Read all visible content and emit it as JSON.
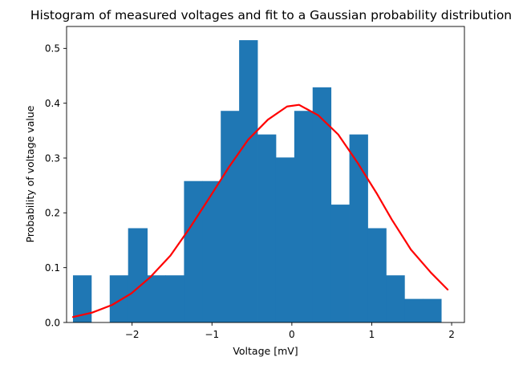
{
  "chart_data": {
    "type": "bar",
    "title": "Histogram of measured voltages and fit to a Gaussian probability distribution",
    "xlabel": "Voltage [mV]",
    "ylabel": "Probability of voltage value",
    "xlim": [
      -2.82,
      2.16
    ],
    "ylim": [
      0,
      0.54
    ],
    "xticks": [
      -2,
      -1,
      0,
      1,
      2
    ],
    "xtick_labels": [
      "−2",
      "−1",
      "0",
      "1",
      "2"
    ],
    "yticks": [
      0.0,
      0.1,
      0.2,
      0.3,
      0.4,
      0.5
    ],
    "ytick_labels": [
      "0.0",
      "0.1",
      "0.2",
      "0.3",
      "0.4",
      "0.5"
    ],
    "grid": false,
    "legend": "none",
    "series": [
      {
        "kind": "histogram",
        "color": "#1f77b4",
        "bin_edges": [
          -2.74,
          -2.51,
          -2.28,
          -2.05,
          -1.81,
          -1.58,
          -1.35,
          -1.12,
          -0.89,
          -0.66,
          -0.43,
          -0.2,
          0.03,
          0.26,
          0.49,
          0.72,
          0.95,
          1.18,
          1.41,
          1.64,
          1.87
        ],
        "values": [
          0.086,
          0.0,
          0.086,
          0.172,
          0.086,
          0.086,
          0.258,
          0.258,
          0.386,
          0.515,
          0.343,
          0.301,
          0.386,
          0.429,
          0.215,
          0.343,
          0.172,
          0.086,
          0.043,
          0.043
        ]
      },
      {
        "kind": "line",
        "color": "#ff0000",
        "x": [
          -2.74,
          -2.5,
          -2.25,
          -2.01,
          -1.77,
          -1.52,
          -1.28,
          -1.03,
          -0.79,
          -0.55,
          -0.3,
          -0.06,
          0.09,
          0.33,
          0.58,
          0.82,
          1.06,
          1.25,
          1.49,
          1.74,
          1.95
        ],
        "y": [
          0.01,
          0.018,
          0.032,
          0.053,
          0.083,
          0.122,
          0.172,
          0.228,
          0.283,
          0.333,
          0.37,
          0.394,
          0.397,
          0.378,
          0.343,
          0.292,
          0.236,
          0.188,
          0.133,
          0.091,
          0.06
        ]
      }
    ]
  }
}
